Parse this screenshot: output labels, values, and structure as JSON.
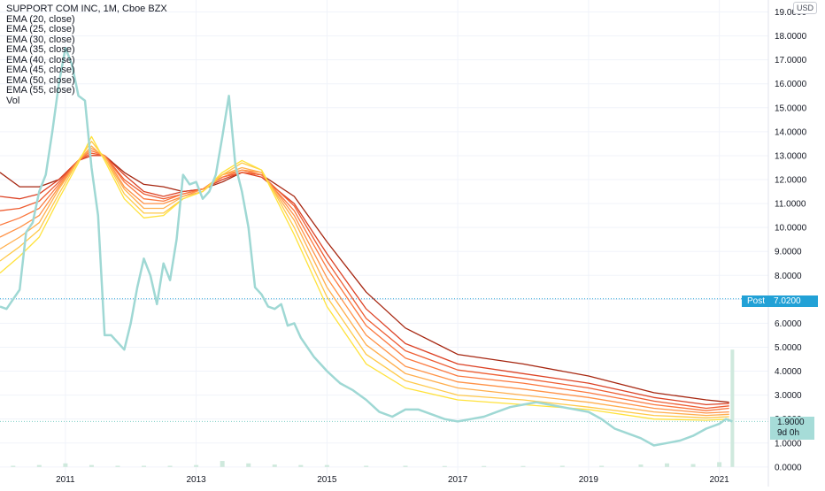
{
  "chart_data": {
    "type": "line",
    "title": "SUPPORT COM INC, 1M, Cboe BZX",
    "legend": [
      "EMA (20, close)",
      "EMA (25, close)",
      "EMA (30, close)",
      "EMA (35, close)",
      "EMA (40, close)",
      "EMA (45, close)",
      "EMA (50, close)",
      "EMA (55, close)",
      "Vol"
    ],
    "currency": "USD",
    "ylim": [
      0,
      19.5
    ],
    "xlim": [
      2010.0,
      2021.75
    ],
    "y_ticks": [
      "0.0000",
      "1.0000",
      "2.0000",
      "3.0000",
      "4.0000",
      "5.0000",
      "6.0000",
      "7.0000",
      "8.0000",
      "9.0000",
      "10.0000",
      "11.0000",
      "12.0000",
      "13.0000",
      "14.0000",
      "15.0000",
      "16.0000",
      "17.0000",
      "18.0000",
      "19.0000"
    ],
    "y_tick_values": [
      0,
      1,
      2,
      3,
      4,
      5,
      6,
      7,
      8,
      9,
      10,
      11,
      12,
      13,
      14,
      15,
      16,
      17,
      18,
      19
    ],
    "x_ticks": [
      "2011",
      "2013",
      "2015",
      "2017",
      "2019",
      "2021"
    ],
    "x_tick_values": [
      2011,
      2013,
      2015,
      2017,
      2019,
      2021
    ],
    "post_market": {
      "label": "Post",
      "price": "7.0200",
      "value": 7.02
    },
    "last_price": {
      "price": "1.9000",
      "countdown": "9d 0h",
      "value": 1.9
    },
    "grid": true,
    "colors": {
      "price": "#9fd8d4",
      "volume": "#cfe9dd",
      "ema": [
        "#ffe23b",
        "#ffc94a",
        "#ffae4d",
        "#ff9247",
        "#fb783e",
        "#ee5d32",
        "#dc4225",
        "#a62610"
      ],
      "post": "#22a1d6"
    },
    "price_series": {
      "name": "Price",
      "x": [
        2010.0,
        2010.1,
        2010.2,
        2010.3,
        2010.4,
        2010.5,
        2010.6,
        2010.7,
        2010.8,
        2010.9,
        2011.0,
        2011.1,
        2011.2,
        2011.3,
        2011.4,
        2011.5,
        2011.6,
        2011.7,
        2011.8,
        2011.9,
        2012.0,
        2012.1,
        2012.2,
        2012.3,
        2012.4,
        2012.5,
        2012.6,
        2012.7,
        2012.8,
        2012.9,
        2013.0,
        2013.1,
        2013.2,
        2013.3,
        2013.4,
        2013.5,
        2013.6,
        2013.7,
        2013.8,
        2013.9,
        2014.0,
        2014.1,
        2014.2,
        2014.3,
        2014.4,
        2014.5,
        2014.6,
        2014.7,
        2014.8,
        2014.9,
        2015.0,
        2015.2,
        2015.4,
        2015.6,
        2015.8,
        2016.0,
        2016.2,
        2016.4,
        2016.6,
        2016.8,
        2017.0,
        2017.2,
        2017.4,
        2017.6,
        2017.8,
        2018.0,
        2018.2,
        2018.4,
        2018.6,
        2018.8,
        2019.0,
        2019.2,
        2019.4,
        2019.6,
        2019.8,
        2020.0,
        2020.2,
        2020.4,
        2020.6,
        2020.8,
        2021.0,
        2021.1,
        2021.2
      ],
      "y": [
        6.7,
        6.6,
        7.0,
        7.4,
        9.8,
        10.2,
        11.5,
        12.2,
        14.0,
        16.0,
        17.5,
        16.8,
        15.5,
        15.3,
        12.5,
        10.5,
        5.5,
        5.5,
        5.2,
        4.9,
        6.0,
        7.5,
        8.7,
        8.0,
        6.8,
        8.5,
        7.8,
        9.5,
        12.2,
        11.8,
        11.9,
        11.2,
        11.5,
        12.2,
        13.8,
        15.5,
        12.6,
        11.5,
        10.0,
        7.5,
        7.2,
        6.7,
        6.6,
        6.8,
        5.9,
        6.0,
        5.4,
        5.0,
        4.6,
        4.3,
        4.0,
        3.5,
        3.2,
        2.8,
        2.3,
        2.1,
        2.4,
        2.4,
        2.2,
        2.0,
        1.9,
        2.0,
        2.1,
        2.3,
        2.5,
        2.6,
        2.7,
        2.6,
        2.5,
        2.4,
        2.3,
        2.0,
        1.6,
        1.4,
        1.2,
        0.9,
        1.0,
        1.1,
        1.3,
        1.6,
        1.8,
        2.0,
        1.9
      ]
    },
    "ema_series": [
      {
        "name": "EMA (20, close)",
        "y": [
          8.1,
          8.8,
          9.6,
          11.2,
          12.7,
          13.8,
          12.8,
          11.2,
          10.4,
          10.5,
          11.2,
          11.5,
          12.3,
          12.8,
          12.4,
          9.7,
          6.7,
          4.3,
          3.3,
          2.8,
          2.6,
          2.4,
          2.0,
          1.95,
          2.0
        ]
      },
      {
        "name": "EMA (25, close)",
        "y": [
          8.6,
          9.2,
          9.9,
          11.4,
          12.8,
          13.6,
          12.9,
          11.4,
          10.6,
          10.6,
          11.2,
          11.5,
          12.2,
          12.7,
          12.4,
          10.0,
          7.1,
          4.7,
          3.6,
          3.0,
          2.8,
          2.5,
          2.15,
          2.05,
          2.1
        ]
      },
      {
        "name": "EMA (30, close)",
        "y": [
          9.1,
          9.6,
          10.2,
          11.6,
          12.8,
          13.4,
          12.9,
          11.6,
          10.8,
          10.8,
          11.3,
          11.5,
          12.2,
          12.5,
          12.3,
          10.3,
          7.5,
          5.1,
          3.9,
          3.3,
          3.0,
          2.7,
          2.3,
          2.15,
          2.2
        ]
      },
      {
        "name": "EMA (35, close)",
        "y": [
          9.6,
          10.0,
          10.5,
          11.7,
          12.8,
          13.3,
          13.0,
          11.7,
          11.0,
          11.0,
          11.3,
          11.6,
          12.2,
          12.4,
          12.3,
          10.5,
          7.9,
          5.5,
          4.2,
          3.55,
          3.25,
          2.9,
          2.45,
          2.25,
          2.3
        ]
      },
      {
        "name": "EMA (40, close)",
        "y": [
          10.1,
          10.4,
          10.8,
          11.8,
          12.8,
          13.2,
          13.0,
          11.9,
          11.2,
          11.1,
          11.4,
          11.6,
          12.1,
          12.4,
          12.2,
          10.7,
          8.3,
          5.9,
          4.55,
          3.8,
          3.5,
          3.1,
          2.6,
          2.35,
          2.45
        ]
      },
      {
        "name": "EMA (45, close)",
        "y": [
          10.7,
          10.8,
          11.1,
          11.9,
          12.8,
          13.1,
          13.0,
          12.0,
          11.4,
          11.2,
          11.4,
          11.6,
          12.1,
          12.3,
          12.2,
          10.9,
          8.6,
          6.2,
          4.85,
          4.05,
          3.7,
          3.3,
          2.75,
          2.45,
          2.55
        ]
      },
      {
        "name": "EMA (50, close)",
        "y": [
          11.3,
          11.2,
          11.4,
          12.0,
          12.8,
          13.0,
          13.0,
          12.2,
          11.5,
          11.3,
          11.5,
          11.6,
          12.0,
          12.3,
          12.1,
          11.0,
          8.9,
          6.6,
          5.15,
          4.3,
          3.9,
          3.5,
          2.9,
          2.6,
          2.65
        ]
      },
      {
        "name": "EMA (55, close)",
        "y": [
          12.3,
          11.7,
          11.7,
          12.0,
          12.8,
          13.0,
          13.0,
          12.3,
          11.8,
          11.7,
          11.5,
          11.6,
          11.9,
          12.3,
          12.2,
          11.3,
          9.4,
          7.3,
          5.8,
          4.7,
          4.3,
          3.8,
          3.1,
          2.8,
          2.7
        ]
      }
    ],
    "ema_x": [
      2010.0,
      2010.3,
      2010.6,
      2010.9,
      2011.2,
      2011.4,
      2011.6,
      2011.9,
      2012.2,
      2012.5,
      2012.8,
      2013.1,
      2013.4,
      2013.7,
      2014.0,
      2014.5,
      2015.0,
      2015.6,
      2016.2,
      2017.0,
      2018.0,
      2019.0,
      2020.0,
      2020.8,
      2021.15
    ],
    "volume": {
      "x": [
        2010.2,
        2010.6,
        2011.0,
        2011.4,
        2011.8,
        2012.2,
        2012.6,
        2013.0,
        2013.4,
        2013.8,
        2014.2,
        2014.6,
        2015.0,
        2015.6,
        2016.2,
        2016.8,
        2017.4,
        2018.0,
        2018.6,
        2019.2,
        2019.8,
        2020.2,
        2020.6,
        2021.0,
        2021.2
      ],
      "y": [
        0.05,
        0.08,
        0.15,
        0.08,
        0.05,
        0.05,
        0.05,
        0.08,
        0.25,
        0.15,
        0.1,
        0.08,
        0.08,
        0.05,
        0.05,
        0.04,
        0.04,
        0.04,
        0.05,
        0.05,
        0.1,
        0.15,
        0.12,
        0.2,
        4.9
      ]
    }
  }
}
